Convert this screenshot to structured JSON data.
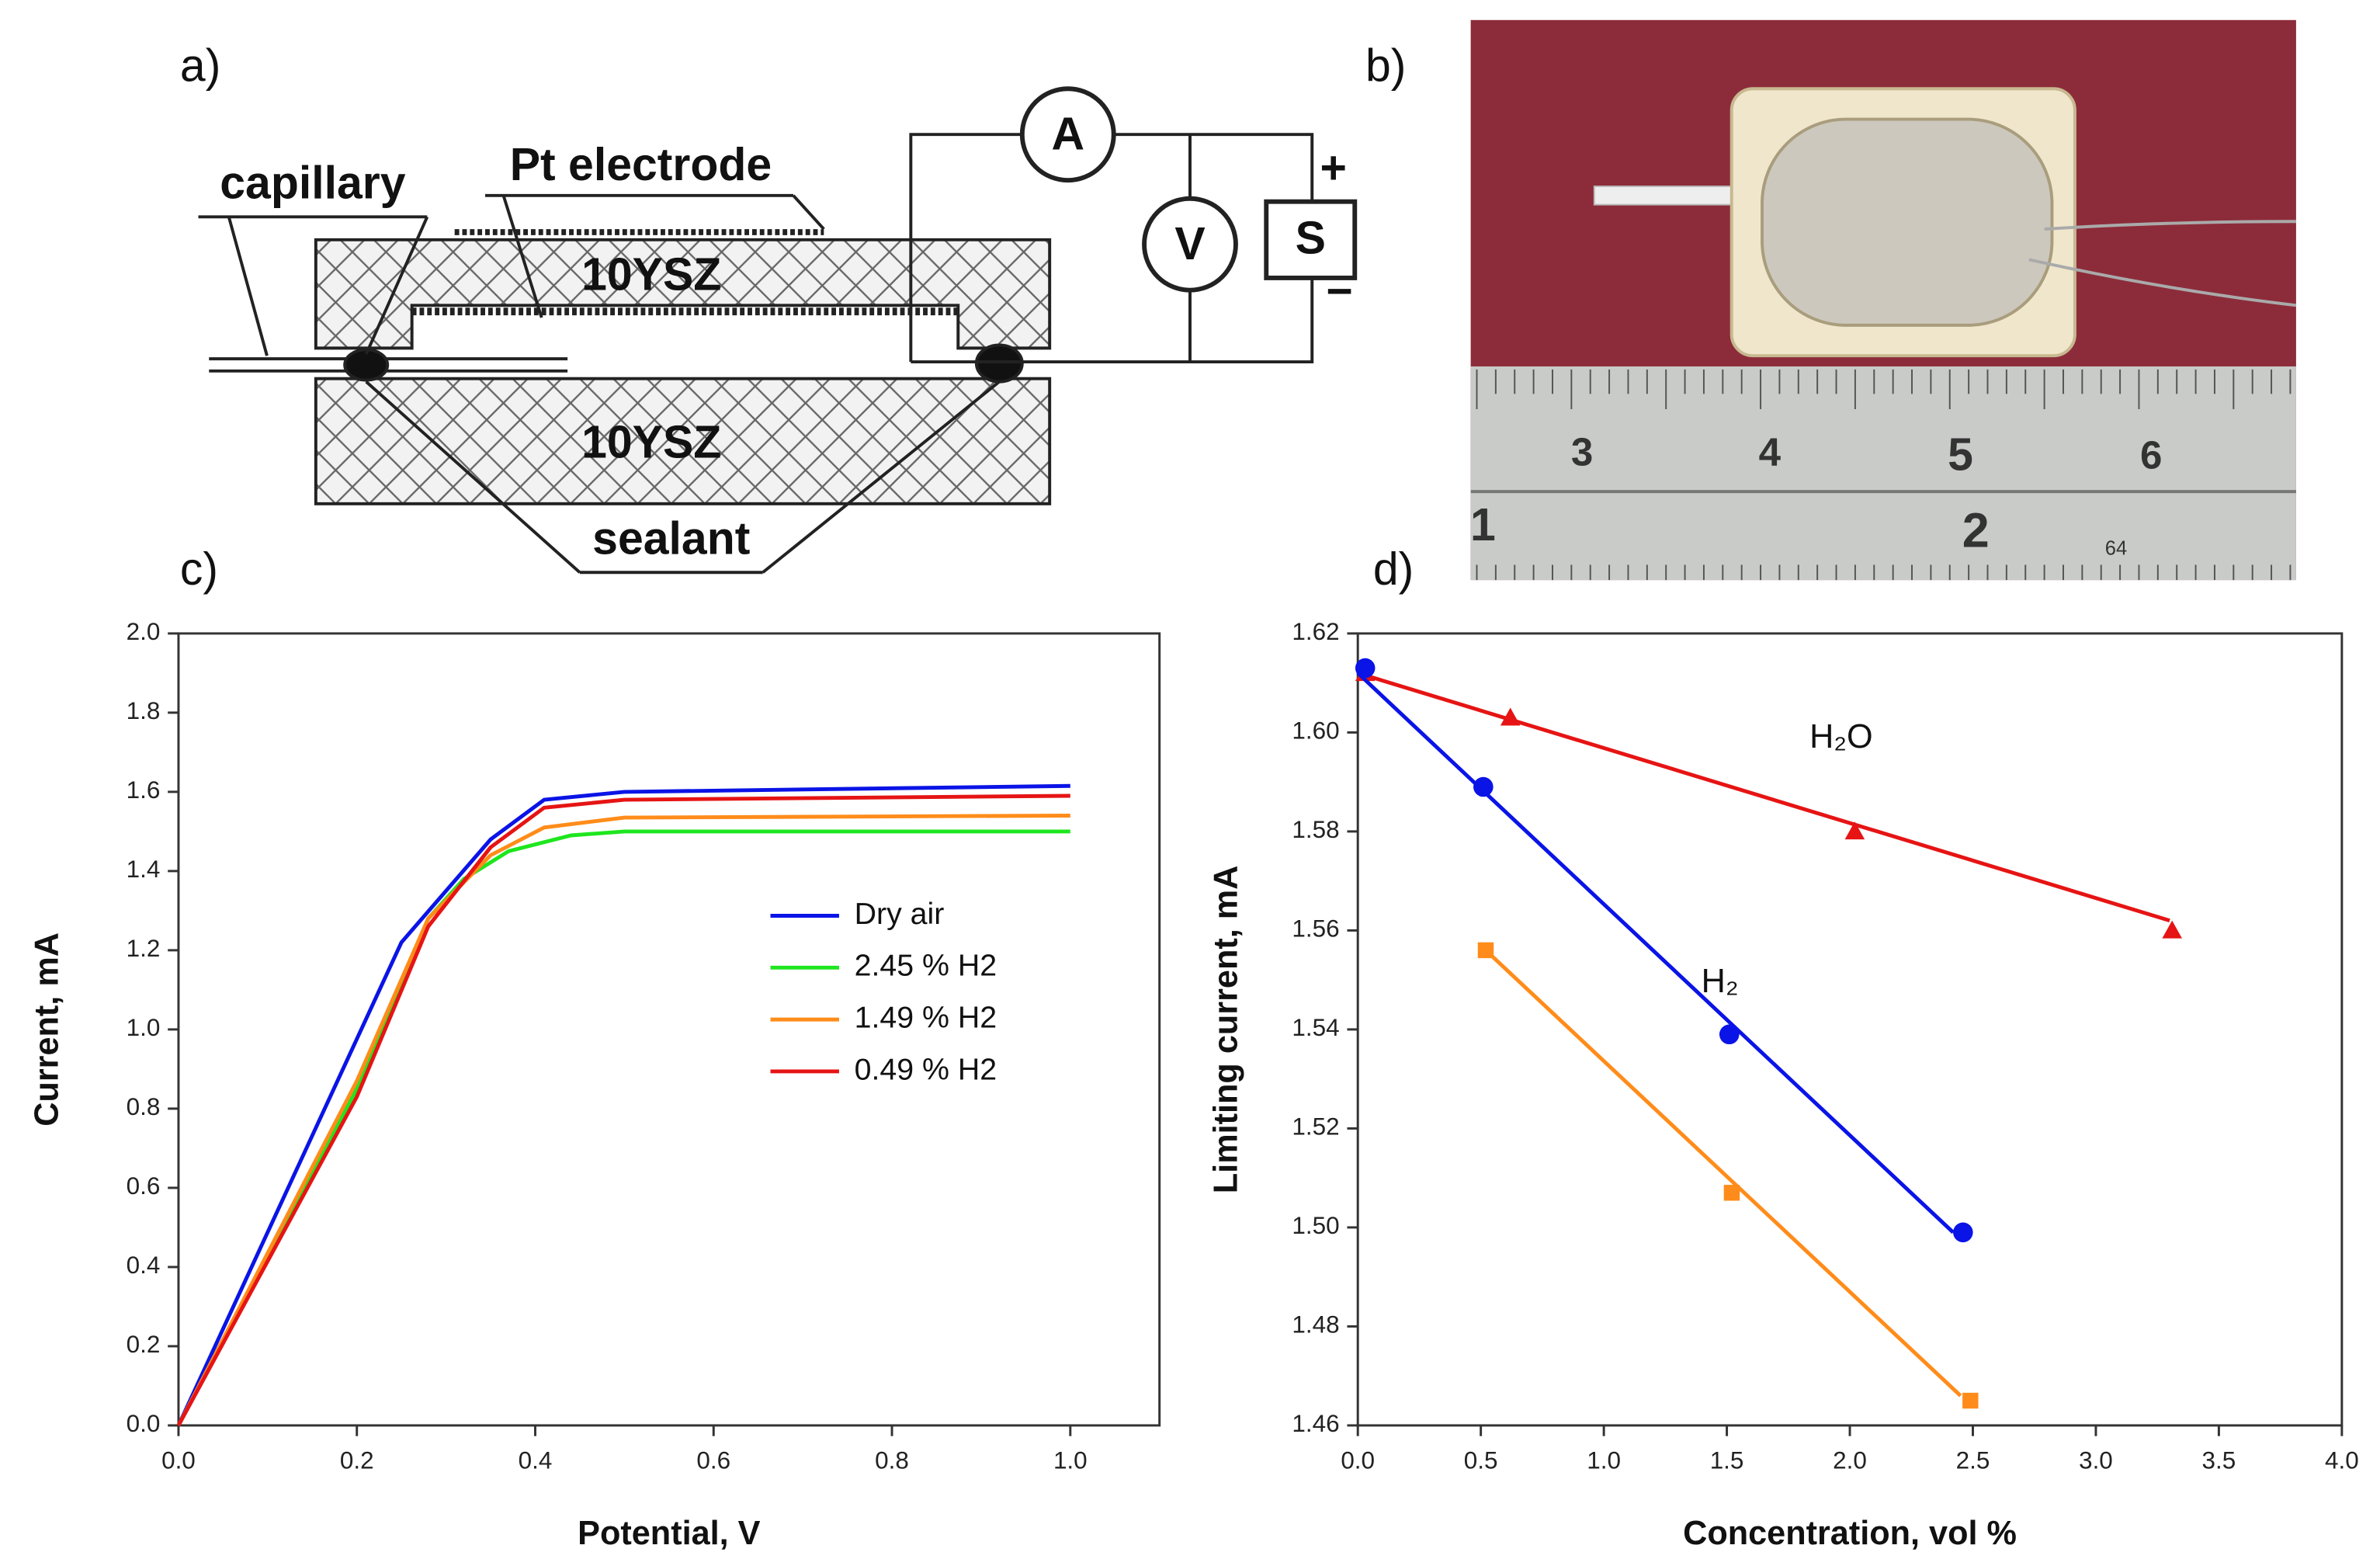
{
  "panels": {
    "a": "a)",
    "b": "b)",
    "c": "c)",
    "d": "d)"
  },
  "diagram": {
    "capillary": "capillary",
    "electrode": "Pt electrode",
    "upper_block": "10YSZ",
    "lower_block": "10YSZ",
    "sealant": "sealant",
    "ammeter": "A",
    "voltmeter": "V",
    "source": "S",
    "plus": "+",
    "minus": "−"
  },
  "photo": {
    "ruler_top": [
      "3",
      "4",
      "5",
      "6"
    ],
    "ruler_bottom": [
      "1",
      "2",
      "64"
    ]
  },
  "chart_data": [
    {
      "type": "line",
      "xlabel": "Potential, V",
      "ylabel": "Current, mA",
      "xlim": [
        0,
        1.1
      ],
      "ylim": [
        0,
        2.0
      ],
      "xticks": [
        {
          "value": 0,
          "label": "0.0"
        },
        0.2,
        0.4,
        0.6,
        0.8,
        {
          "value": 1,
          "label": "1.0"
        }
      ],
      "yticks": [
        {
          "value": 0,
          "label": "0.0"
        },
        0.2,
        0.4,
        0.6,
        0.8,
        {
          "value": 1,
          "label": "1.0"
        },
        1.2,
        1.4,
        1.6,
        1.8,
        {
          "value": 2,
          "label": "2.0"
        }
      ],
      "legend": "right",
      "series": [
        {
          "name": "Dry air",
          "color": "#0a14e6",
          "x": [
            0,
            0.25,
            0.35,
            0.41,
            0.5,
            1.0
          ],
          "values": [
            0,
            1.22,
            1.48,
            1.58,
            1.6,
            1.615
          ]
        },
        {
          "name": "2.45 % H2",
          "color": "#1ee61e",
          "x": [
            0,
            0.2,
            0.28,
            0.32,
            0.37,
            0.44,
            0.5,
            1.0
          ],
          "values": [
            0,
            0.85,
            1.28,
            1.38,
            1.45,
            1.49,
            1.5,
            1.5
          ]
        },
        {
          "name": "1.49 % H2",
          "color": "#ff8c1a",
          "x": [
            0,
            0.2,
            0.28,
            0.35,
            0.41,
            0.5,
            1.0
          ],
          "values": [
            0,
            0.87,
            1.28,
            1.44,
            1.51,
            1.535,
            1.54
          ]
        },
        {
          "name": "0.49 % H2",
          "color": "#e61414",
          "x": [
            0,
            0.2,
            0.28,
            0.35,
            0.41,
            0.5,
            1.0
          ],
          "values": [
            0,
            0.83,
            1.26,
            1.46,
            1.56,
            1.58,
            1.59
          ]
        }
      ]
    },
    {
      "type": "scatter",
      "xlabel": "Concentration, vol %",
      "ylabel": "Limiting current, mA",
      "xlim": [
        0,
        4
      ],
      "ylim": [
        1.46,
        1.62
      ],
      "xticks": [
        {
          "value": 0,
          "label": "0.0"
        },
        0.5,
        {
          "value": 1,
          "label": "1.0"
        },
        1.5,
        {
          "value": 2,
          "label": "2.0"
        },
        2.5,
        {
          "value": 3,
          "label": "3.0"
        },
        3.5,
        {
          "value": 4,
          "label": "4.0"
        }
      ],
      "yticks": [
        1.46,
        1.48,
        {
          "value": 1.5,
          "label": "1.50"
        },
        1.52,
        1.54,
        1.56,
        1.58,
        {
          "value": 1.6,
          "label": "1.60"
        },
        1.62
      ],
      "series": [
        {
          "name": "H₂O",
          "color": "#e61414",
          "marker": "triangle",
          "x": [
            0.03,
            0.62,
            2.02,
            3.31
          ],
          "values": [
            1.612,
            1.603,
            1.58,
            1.56
          ],
          "fit": {
            "x": [
              0,
              3.3
            ],
            "values": [
              1.612,
              1.562
            ]
          }
        },
        {
          "name": "H₂",
          "color": "#0a14e6",
          "marker": "circle",
          "x": [
            0.03,
            0.51,
            1.51,
            2.46
          ],
          "values": [
            1.613,
            1.589,
            1.539,
            1.499
          ],
          "fit": {
            "x": [
              0,
              2.42
            ],
            "values": [
              1.612,
              1.499
            ]
          }
        },
        {
          "color": "#ff8c1a",
          "marker": "square",
          "x": [
            0.52,
            1.52,
            2.49
          ],
          "values": [
            1.556,
            1.507,
            1.465
          ],
          "fit": {
            "x": [
              0.52,
              2.45
            ],
            "values": [
              1.556,
              1.466
            ]
          }
        }
      ]
    }
  ]
}
